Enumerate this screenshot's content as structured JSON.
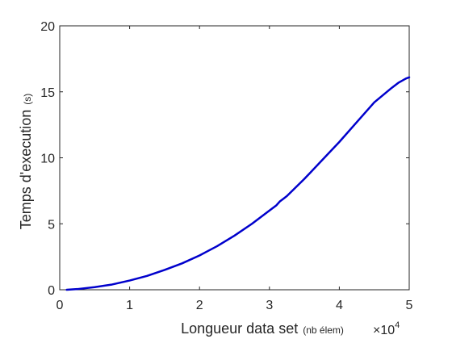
{
  "chart_data": {
    "type": "line",
    "x": [
      1000,
      2500,
      5000,
      7500,
      10000,
      12500,
      15000,
      17500,
      20000,
      22500,
      25000,
      27500,
      30000,
      31000,
      31500,
      32000,
      32500,
      35000,
      37500,
      40000,
      42500,
      45000,
      47500,
      48500,
      49500,
      50000
    ],
    "series": [
      {
        "name": "",
        "color": "#0000cc",
        "values": [
          0.0,
          0.05,
          0.2,
          0.4,
          0.7,
          1.05,
          1.5,
          2.0,
          2.6,
          3.3,
          4.1,
          5.0,
          6.0,
          6.4,
          6.7,
          6.9,
          7.1,
          8.4,
          9.8,
          11.2,
          12.7,
          14.2,
          15.3,
          15.7,
          16.0,
          16.1
        ]
      }
    ],
    "xlim": [
      0,
      50000
    ],
    "ylim": [
      0,
      20
    ],
    "xticks": [
      0,
      10000,
      20000,
      30000,
      40000,
      50000
    ],
    "xtick_labels": [
      "0",
      "1",
      "2",
      "3",
      "4",
      "5"
    ],
    "yticks": [
      0,
      5,
      10,
      15,
      20
    ],
    "ytick_labels": [
      "0",
      "5",
      "10",
      "15",
      "20"
    ],
    "xlabel": "Longueur data set",
    "xlabel_unit": "(nb élem)",
    "ylabel": "Temps d'execution",
    "ylabel_unit": "(s)",
    "x_multiplier": "×10",
    "x_multiplier_exp": "4",
    "grid": false
  }
}
